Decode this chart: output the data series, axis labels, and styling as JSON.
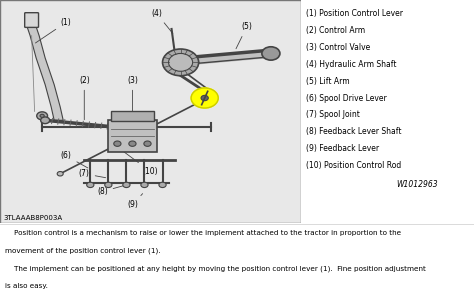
{
  "bg_color": "#ffffff",
  "diagram_bg": "#e8e8e8",
  "legend_items": [
    "(1) Position Control Lever",
    "(2) Control Arm",
    "(3) Control Valve",
    "(4) Hydraulic Arm Shaft",
    "(5) Lift Arm",
    "(6) Spool Drive Lever",
    "(7) Spool Joint",
    "(8) Feedback Lever Shaft",
    "(9) Feedback Lever",
    "(10) Position Control Rod"
  ],
  "watermark": "W1012963",
  "figure_label": "3TLAAAB8P003A",
  "caption_lines": [
    "    Position control is a mechanism to raise or lower the implement attached to the tractor in proportion to the",
    "movement of the position control lever (1).",
    "    The implement can be positioned at any height by moving the position control lever (1).  Fine position adjustment",
    "is also easy."
  ],
  "highlight_color": "#ffff00",
  "line_color": "#444444",
  "fill_color": "#bbbbbb",
  "text_color": "#000000",
  "figsize": [
    4.74,
    2.99
  ],
  "dpi": 100
}
